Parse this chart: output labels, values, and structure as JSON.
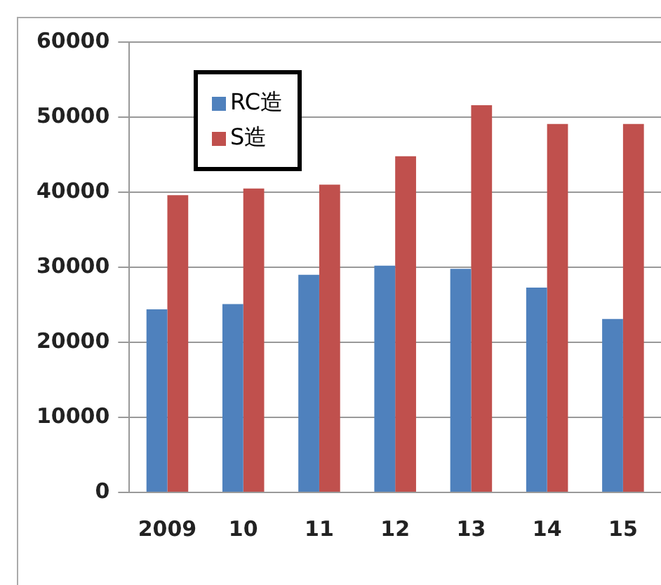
{
  "chart_data": {
    "type": "bar",
    "categories": [
      "2009",
      "10",
      "11",
      "12",
      "13",
      "14",
      "15"
    ],
    "series": [
      {
        "name": "RC造",
        "color": "#4f81bd",
        "values": [
          24400,
          25100,
          29000,
          30200,
          29800,
          27300,
          23100
        ]
      },
      {
        "name": "S造",
        "color": "#c0504d",
        "values": [
          39600,
          40500,
          41000,
          44800,
          51600,
          49100,
          49100
        ]
      }
    ],
    "ylim": [
      0,
      60000
    ],
    "yticks": [
      0,
      10000,
      20000,
      30000,
      40000,
      50000,
      60000
    ],
    "grid": "y",
    "legend": "top left"
  }
}
